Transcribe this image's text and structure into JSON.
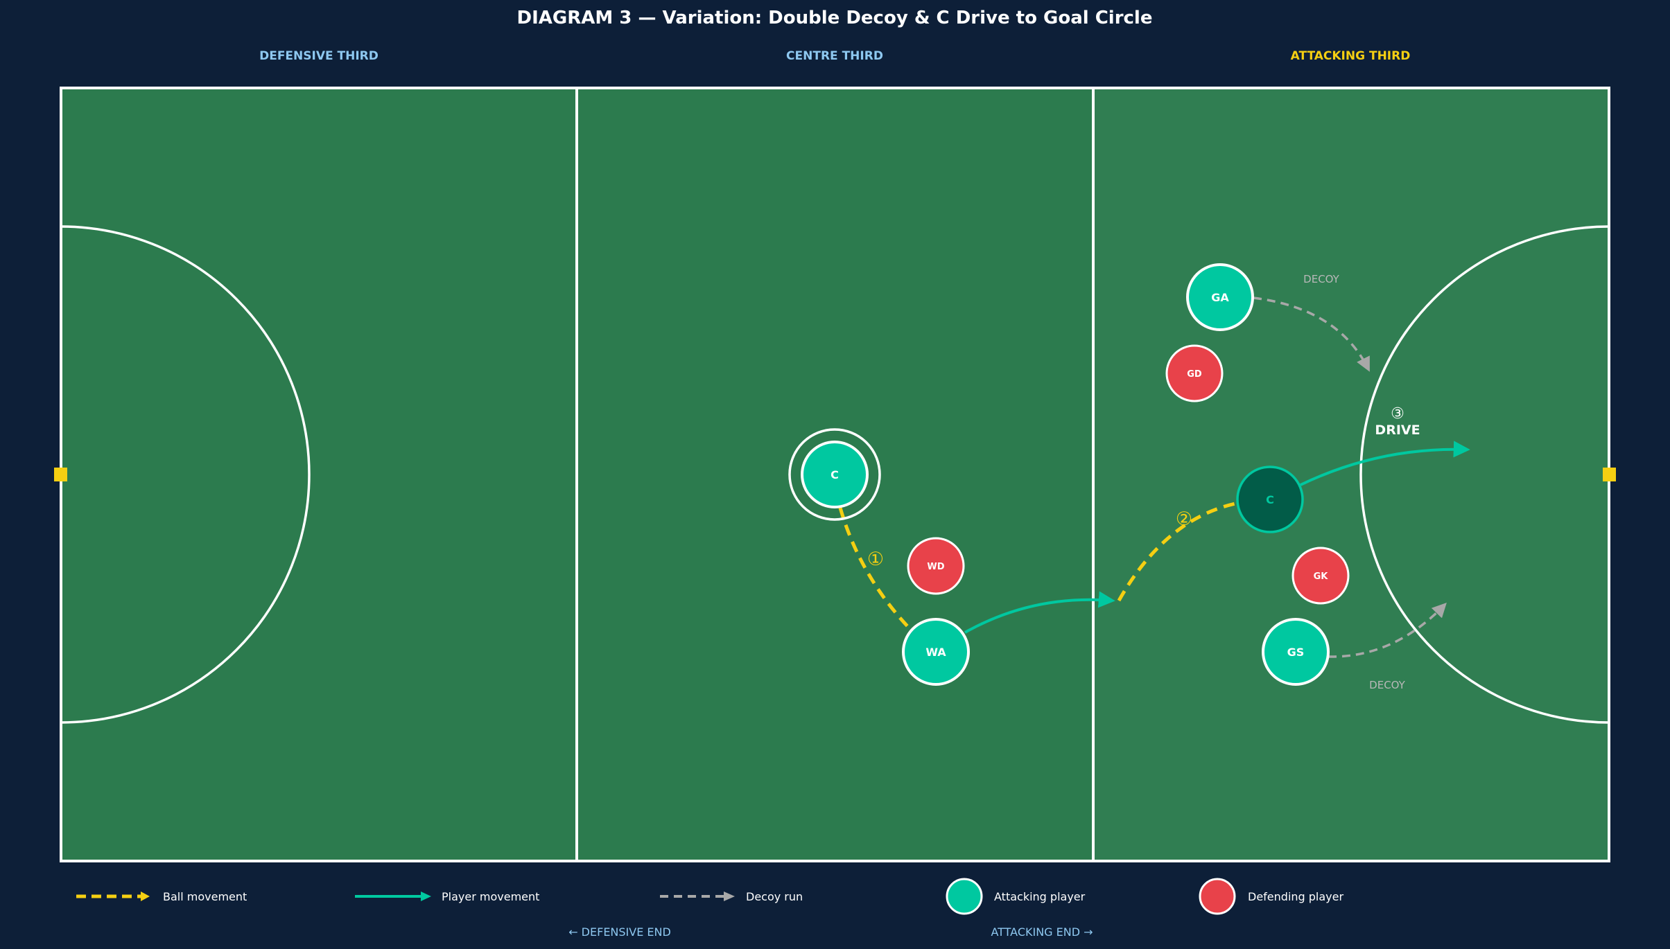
{
  "title": "DIAGRAM 3 — Variation: Double Decoy & C Drive to Goal Circle",
  "thirds": {
    "defensive": "DEFENSIVE THIRD",
    "centre": "CENTRE THIRD",
    "attacking": "ATTACKING THIRD"
  },
  "players": {
    "c_start": "C",
    "wa": "WA",
    "wd": "WD",
    "ga": "GA",
    "gd": "GD",
    "c_end": "C",
    "gk": "GK",
    "gs": "GS"
  },
  "annotations": {
    "step1": "①",
    "step2": "②",
    "step3": "③",
    "drive": "DRIVE",
    "decoy_top": "DECOY",
    "decoy_bottom": "DECOY"
  },
  "legend": {
    "ball": "Ball movement",
    "player": "Player movement",
    "decoy": "Decoy run",
    "attacking": "Attacking player",
    "defending": "Defending player"
  },
  "footer": {
    "defensive_end": "← DEFENSIVE END",
    "attacking_end": "ATTACKING END →"
  },
  "colors": {
    "background": "#0d1f38",
    "court": "#2c7b4e",
    "attacking_player": "#00c8a0",
    "attacking_player_dim": "#025c48",
    "defending_player": "#e8424a",
    "ball_path": "#f5cf12",
    "decoy_path": "#a8a8a8",
    "third_label": "#8ec8f0",
    "attacking_label": "#f5cf12"
  }
}
